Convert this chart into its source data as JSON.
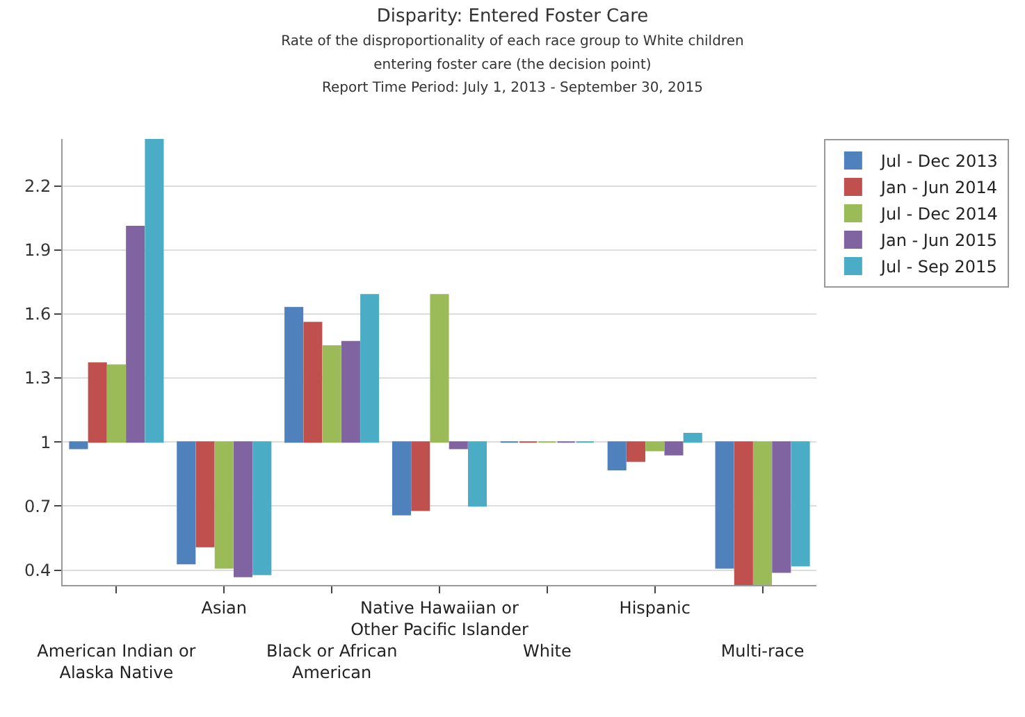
{
  "chart_data": {
    "type": "bar",
    "title": "Disparity: Entered Foster Care",
    "subtitle": "Rate of the disproportionality of each race group to White children\nentering foster care (the decision point)\nReport Time Period: July 1, 2013 - September 30, 2015",
    "categories": [
      "American Indian or\nAlaska Native",
      "Asian",
      "Black or African\nAmerican",
      "Native Hawaiian or\nOther Pacific Islander",
      "White",
      "Hispanic",
      "Multi-race"
    ],
    "series": [
      {
        "name": "Jul - Dec 2013",
        "color": "#4f81bd",
        "base": [
          1,
          1,
          1,
          1,
          1,
          1,
          1
        ],
        "values": [
          -0.03,
          -0.57,
          0.63,
          -0.34,
          0.0,
          -0.13,
          -0.59
        ]
      },
      {
        "name": "Jan - Jun 2014",
        "color": "#c0504d",
        "base": [
          1,
          1,
          1,
          1,
          1,
          1,
          1
        ],
        "values": [
          0.37,
          -0.49,
          0.56,
          -0.32,
          0.0,
          -0.09,
          -0.67
        ]
      },
      {
        "name": "Jul - Dec 2014",
        "color": "#9bbb59",
        "base": [
          1,
          1,
          1,
          1,
          1,
          1,
          1
        ],
        "values": [
          0.36,
          -0.59,
          0.45,
          0.69,
          0.0,
          -0.04,
          -0.67
        ]
      },
      {
        "name": "Jan - Jun 2015",
        "color": "#8064a2",
        "base": [
          1,
          1,
          1,
          1,
          1,
          1,
          1
        ],
        "values": [
          1.01,
          -0.63,
          0.47,
          -0.03,
          0.0,
          -0.06,
          -0.61
        ]
      },
      {
        "name": "Jul - Sep 2015",
        "color": "#4bacc6",
        "base": [
          1,
          1,
          1,
          1,
          1,
          1,
          1
        ],
        "values": [
          1.42,
          -0.62,
          0.69,
          -0.3,
          0.0,
          0.04,
          -0.58
        ]
      }
    ],
    "ylim": [
      0.33,
      2.42
    ],
    "yticks": [
      0.4,
      0.7,
      1,
      1.3,
      1.6,
      1.9,
      2.2
    ],
    "grid": "y",
    "legend": "top right"
  }
}
